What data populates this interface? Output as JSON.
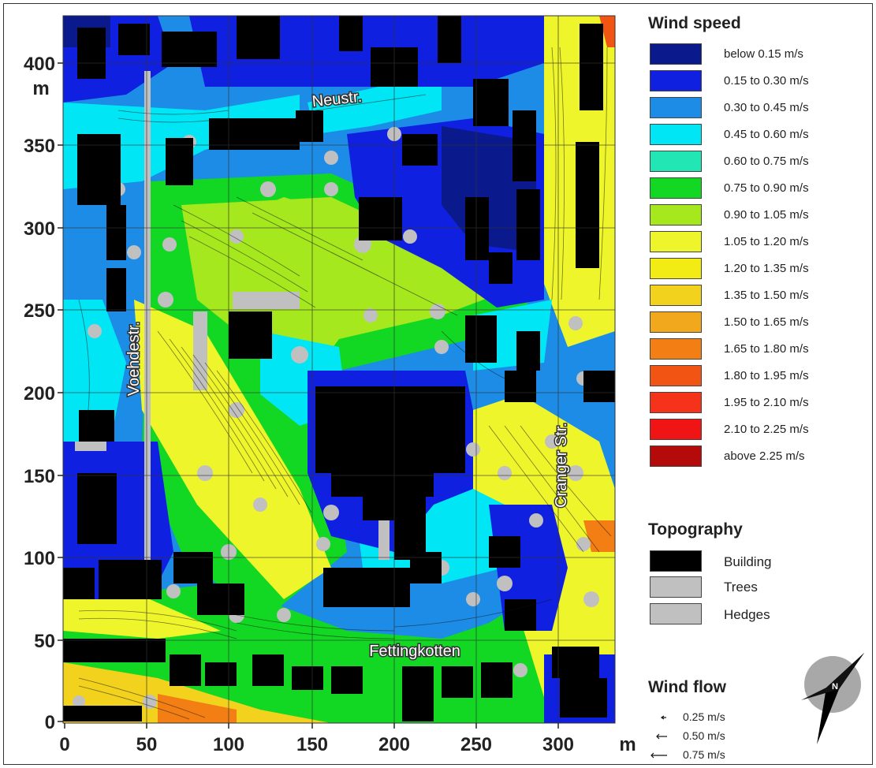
{
  "map": {
    "x_unit": "m",
    "y_unit": "m",
    "x_ticks": [
      "0",
      "50",
      "100",
      "150",
      "200",
      "250",
      "300"
    ],
    "y_ticks": [
      "0",
      "50",
      "100",
      "150",
      "200",
      "250",
      "300",
      "350",
      "400"
    ],
    "streets": {
      "neustr": "Neustr.",
      "voehdestr": "Voehdestr.",
      "granger": "Cranger Str.",
      "fettingkotten": "Fettingkotten"
    }
  },
  "legend": {
    "wind_speed_title": "Wind speed",
    "wind_speed_classes": [
      {
        "label": "below 0.15 m/s",
        "color": "#0a1a8c"
      },
      {
        "label": "0.15  to 0.30 m/s",
        "color": "#1020e0"
      },
      {
        "label": "0.30  to 0.45 m/s",
        "color": "#1c8ce6"
      },
      {
        "label": "0.45  to 0.60 m/s",
        "color": "#00e6f5"
      },
      {
        "label": "0.60  to 0.75 m/s",
        "color": "#22e6b4"
      },
      {
        "label": "0.75  to 0.90 m/s",
        "color": "#12d824"
      },
      {
        "label": "0.90  to 1.05 m/s",
        "color": "#a6e81e"
      },
      {
        "label": "1.05  to 1.20 m/s",
        "color": "#eef52a"
      },
      {
        "label": "1.20  to 1.35 m/s",
        "color": "#f3ec14"
      },
      {
        "label": "1.35  to 1.50 m/s",
        "color": "#f2d21c"
      },
      {
        "label": "1.50  to 1.65 m/s",
        "color": "#f2a81c"
      },
      {
        "label": "1.65  to 1.80 m/s",
        "color": "#f27e14"
      },
      {
        "label": "1.80  to 1.95 m/s",
        "color": "#f25414"
      },
      {
        "label": "1.95  to 2.10 m/s",
        "color": "#f5321a"
      },
      {
        "label": "2.10  to 2.25 m/s",
        "color": "#f01414"
      },
      {
        "label": "above 2.25 m/s",
        "color": "#b40a0a"
      }
    ],
    "topography_title": "Topography",
    "topography": [
      {
        "label": "Building",
        "color": "#000000"
      },
      {
        "label": "Trees",
        "color": "#c0c0c0"
      },
      {
        "label": "Hedges",
        "color": "#c0c0c0"
      }
    ],
    "wind_flow_title": "Wind flow",
    "wind_flow": [
      {
        "label": "0.25 m/s"
      },
      {
        "label": "0.50 m/s"
      },
      {
        "label": "0.75 m/s"
      }
    ],
    "compass_letter": "N"
  }
}
